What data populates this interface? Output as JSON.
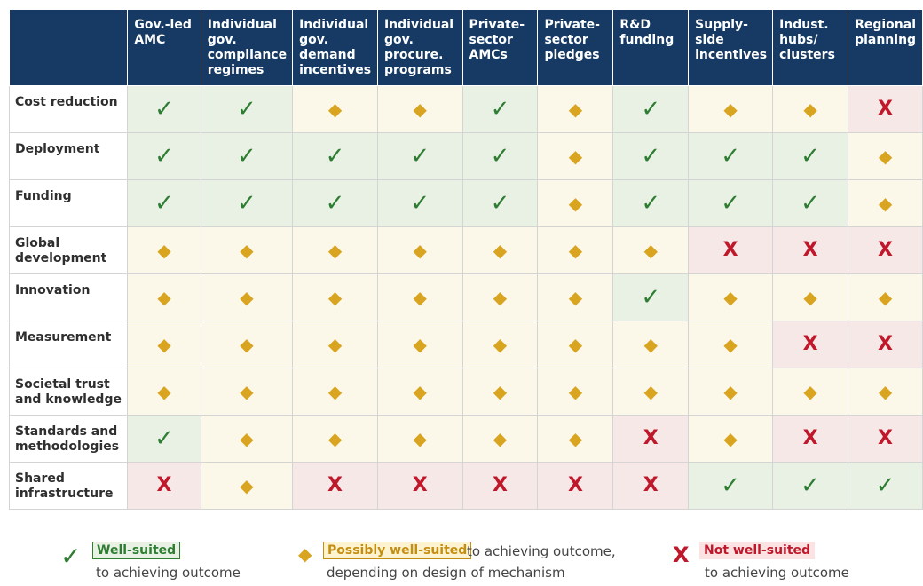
{
  "chart_data": {
    "type": "table",
    "columns": [
      "Gov.-led AMC",
      "Individual gov. compliance regimes",
      "Individual gov. demand incentives",
      "Individual gov. procure. programs",
      "Private-sector AMCs",
      "Private-sector pledges",
      "R&D funding",
      "Supply-side incentives",
      "Indust. hubs/ clusters",
      "Regional planning"
    ],
    "rows": [
      {
        "label": "Cost reduction",
        "values": [
          "well",
          "well",
          "possible",
          "possible",
          "well",
          "possible",
          "well",
          "possible",
          "possible",
          "not"
        ]
      },
      {
        "label": "Deployment",
        "values": [
          "well",
          "well",
          "well",
          "well",
          "well",
          "possible",
          "well",
          "well",
          "well",
          "possible"
        ]
      },
      {
        "label": "Funding",
        "values": [
          "well",
          "well",
          "well",
          "well",
          "well",
          "possible",
          "well",
          "well",
          "well",
          "possible"
        ]
      },
      {
        "label": "Global development",
        "values": [
          "possible",
          "possible",
          "possible",
          "possible",
          "possible",
          "possible",
          "possible",
          "not",
          "not",
          "not"
        ]
      },
      {
        "label": "Innovation",
        "values": [
          "possible",
          "possible",
          "possible",
          "possible",
          "possible",
          "possible",
          "well",
          "possible",
          "possible",
          "possible"
        ]
      },
      {
        "label": "Measurement",
        "values": [
          "possible",
          "possible",
          "possible",
          "possible",
          "possible",
          "possible",
          "possible",
          "possible",
          "not",
          "not"
        ]
      },
      {
        "label": "Societal trust and knowledge",
        "values": [
          "possible",
          "possible",
          "possible",
          "possible",
          "possible",
          "possible",
          "possible",
          "possible",
          "possible",
          "possible"
        ]
      },
      {
        "label": "Standards and methodologies",
        "values": [
          "well",
          "possible",
          "possible",
          "possible",
          "possible",
          "possible",
          "not",
          "possible",
          "not",
          "not"
        ]
      },
      {
        "label": "Shared infrastructure",
        "values": [
          "not",
          "possible",
          "not",
          "not",
          "not",
          "not",
          "not",
          "well",
          "well",
          "well"
        ]
      }
    ],
    "symbols": {
      "well": {
        "glyph": "✓",
        "icon": "check-icon",
        "color": "#2e7d32",
        "cell_bg": "#e8f1e4"
      },
      "possible": {
        "glyph": "◆",
        "icon": "diamond-icon",
        "color": "#d9a520",
        "cell_bg": "#fbf7e9"
      },
      "not": {
        "glyph": "X",
        "icon": "x-icon",
        "color": "#c0182b",
        "cell_bg": "#f7e8e8"
      }
    },
    "header_bg": "#163a63"
  },
  "legend": {
    "well": {
      "badge": "Well-suited",
      "text": "to achieving outcome"
    },
    "possible": {
      "badge": "Possibly well-suited",
      "text1": "to achieving outcome,",
      "text2": "depending on design of mechanism"
    },
    "not": {
      "badge": "Not well-suited",
      "text": "to achieving outcome"
    }
  }
}
